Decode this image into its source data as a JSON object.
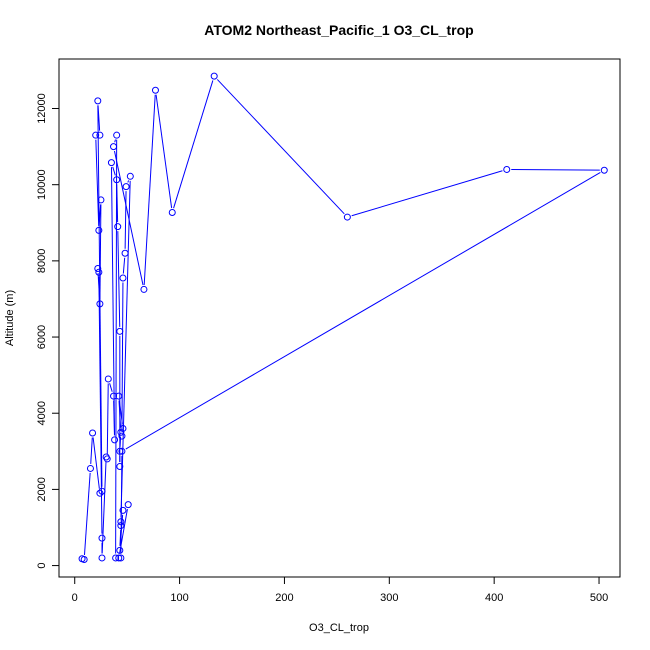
{
  "chart_data": {
    "type": "line",
    "title": "ATOM2 Northeast_Pacific_1 O3_CL_trop",
    "xlabel": "O3_CL_trop",
    "ylabel": "Altitude (m)",
    "xlim": [
      -15,
      520
    ],
    "ylim": [
      -300,
      13300
    ],
    "x_ticks": [
      0,
      100,
      200,
      300,
      400,
      500
    ],
    "y_ticks": [
      0,
      2000,
      4000,
      6000,
      8000,
      10000,
      12000
    ],
    "grid": false,
    "series_color": "#0000ff",
    "series": [
      {
        "points": [
          [
            7,
            180
          ],
          [
            9,
            160
          ],
          [
            15,
            2550
          ],
          [
            17,
            3480
          ],
          [
            24,
            1900
          ],
          [
            26,
            1950
          ],
          [
            22,
            12200
          ],
          [
            24,
            11300
          ],
          [
            20,
            11300
          ],
          [
            23,
            8800
          ],
          [
            25,
            9600
          ],
          [
            24,
            6870
          ],
          [
            22,
            7800
          ],
          [
            23,
            7700
          ],
          [
            26,
            720
          ],
          [
            26,
            200
          ],
          [
            30,
            2850
          ],
          [
            31,
            2800
          ],
          [
            32,
            4900
          ],
          [
            37,
            4450
          ],
          [
            38,
            3300
          ],
          [
            35,
            10580
          ],
          [
            40,
            10130
          ],
          [
            41,
            8900
          ],
          [
            43,
            6150
          ],
          [
            43,
            2600
          ],
          [
            43,
            3000
          ],
          [
            44,
            3500
          ],
          [
            42,
            4450
          ],
          [
            46,
            3600
          ],
          [
            45,
            3400
          ],
          [
            46,
            7550
          ],
          [
            48,
            8200
          ],
          [
            49,
            9950
          ],
          [
            53,
            10220
          ],
          [
            44,
            1150
          ],
          [
            44,
            1050
          ],
          [
            43,
            400
          ],
          [
            46,
            1450
          ],
          [
            51,
            1600
          ],
          [
            42,
            200
          ],
          [
            39,
            200
          ],
          [
            40,
            11300
          ],
          [
            37,
            11000
          ],
          [
            66,
            7250
          ],
          [
            77,
            12480
          ],
          [
            93,
            9270
          ],
          [
            133,
            12850
          ],
          [
            260,
            9150
          ],
          [
            412,
            10400
          ],
          [
            505,
            10380
          ],
          [
            45,
            3000
          ],
          [
            44,
            200
          ]
        ]
      }
    ]
  }
}
